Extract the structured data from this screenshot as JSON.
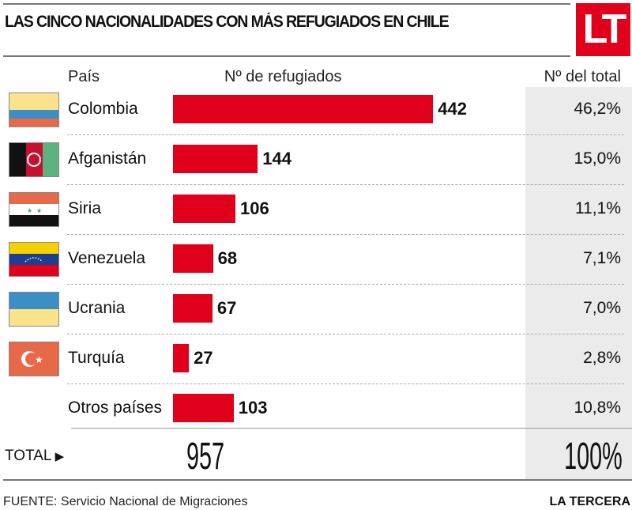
{
  "title": "LAS CINCO NACIONALIDADES CON MÁS REFUGIADOS EN CHILE",
  "logo": "LT",
  "headers": {
    "country": "País",
    "count": "Nº de refugiados",
    "share": "Nº del total"
  },
  "chart_data": {
    "type": "bar",
    "title": "LAS CINCO NACIONALIDADES CON MÁS REFUGIADOS EN CHILE",
    "categories": [
      "Colombia",
      "Afganistán",
      "Siria",
      "Venezuela",
      "Ucrania",
      "Turquía",
      "Otros países"
    ],
    "values": [
      442,
      144,
      106,
      68,
      67,
      27,
      103
    ],
    "value_labels": [
      "442",
      "144",
      "106",
      "68",
      "67",
      "27",
      "103"
    ],
    "shares": [
      "46,2%",
      "15,0%",
      "11,1%",
      "7,1%",
      "7,0%",
      "2,8%",
      "10,8%"
    ],
    "flags": [
      "colombia",
      "afghanistan",
      "syria",
      "venezuela",
      "ukraine",
      "turkey",
      ""
    ],
    "bar_color": "#e0001b",
    "orientation": "horizontal"
  },
  "total": {
    "label": "TOTAL",
    "value": "957",
    "share": "100%"
  },
  "footer": {
    "source": "FUENTE: Servicio Nacional de Migraciones",
    "brand": "LA TERCERA"
  }
}
